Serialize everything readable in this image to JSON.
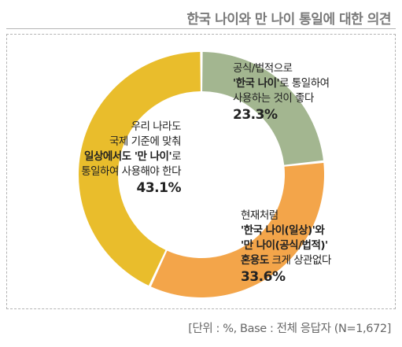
{
  "header": {
    "title": "한국 나이와 만 나이 통일에 대한 의견"
  },
  "chart_data": {
    "type": "pie",
    "subtype": "donut",
    "categories": [
      "공식/법적으로 '한국 나이'로 통일하여 사용하는 것이 좋다",
      "현재처럼 '한국 나이(일상)'와 '만 나이(공식/법적)' 혼용도 크게 상관없다",
      "우리 나라도 국제 기준에 맞춰 일상에서도 '만 나이'로 통일하여 사용해야 한다"
    ],
    "values": [
      23.3,
      33.6,
      43.1
    ],
    "colors": [
      "#a3b690",
      "#f3a54a",
      "#e9bd2c"
    ],
    "unit": "%",
    "legend": "none",
    "labels": [
      {
        "line1": "공식/법적으로",
        "line2_bold": "'한국 나이'",
        "line2_rest": "로 통일하여",
        "line3": "사용하는 것이 좋다",
        "pct": "23.3%"
      },
      {
        "line1": "현재처럼",
        "line2_bold": "'한국 나이(일상)'와",
        "line3_bold": "'만 나이(공식/법적)'",
        "line4_bold": "혼용도",
        "line4_rest": " 크게 상관없다",
        "pct": "33.6%"
      },
      {
        "line1": "우리 나라도",
        "line2": "국제 기준에 맞춰",
        "line3_bold": "일상에서도 '만 나이'",
        "line3_rest": "로",
        "line4": "통일하여 사용해야 한다",
        "pct": "43.1%"
      }
    ]
  },
  "footnote": "[단위 : %, Base : 전체 응답자 (N=1,672]"
}
